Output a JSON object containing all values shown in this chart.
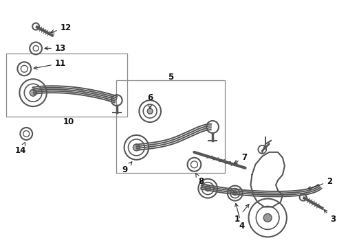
{
  "bg_color": "#ffffff",
  "fig_width": 4.9,
  "fig_height": 3.6,
  "dpi": 100,
  "part_color": "#555555",
  "arrow_color": "#333333",
  "label_fontsize": 8.5
}
